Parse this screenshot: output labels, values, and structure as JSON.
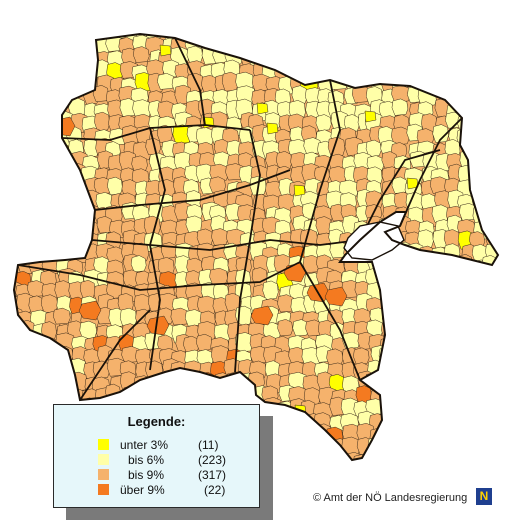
{
  "legend": {
    "title": "Legende:",
    "items": [
      {
        "label": "unter 3%",
        "count": "(11)",
        "color": "#ffff00"
      },
      {
        "label": "bis 6%",
        "count": "(223)",
        "color": "#ffffa8"
      },
      {
        "label": "bis 9%",
        "count": "(317)",
        "color": "#f5b26c"
      },
      {
        "label": "über 9%",
        "count": "(22)",
        "color": "#f47a20"
      }
    ]
  },
  "copyright": "© Amt der NÖ Landesregierung",
  "logo_text": "N",
  "colors": {
    "background": "#ffffff",
    "border": "#3a2a1a",
    "district_border": "#1a120a",
    "vienna_hole": "#ffffff"
  }
}
